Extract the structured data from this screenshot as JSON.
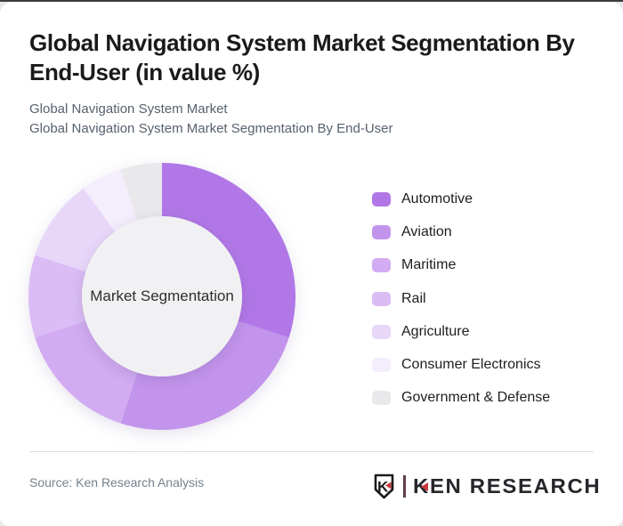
{
  "page": {
    "background_color": "#e8e8e8",
    "card_color": "#ffffff",
    "top_strip_color": "#3c3c3c"
  },
  "header": {
    "title": "Global Navigation System Market Segmentation By End-User (in value %)",
    "title_lines": [
      "Global Navigation System Market Segmentation By",
      "End-User (in value %)"
    ],
    "subtitle_lines": [
      "Global Navigation System Market",
      "Global Navigation System Market Segmentation By End-User"
    ]
  },
  "chart_data": {
    "type": "pie",
    "variant": "donut",
    "title": "Global Navigation System Market Segmentation By End-User (in value %)",
    "center_label": "Market Segmentation",
    "categories": [
      "Automotive",
      "Aviation",
      "Maritime",
      "Rail",
      "Agriculture",
      "Consumer Electronics",
      "Government & Defense"
    ],
    "values": [
      30,
      25,
      15,
      10,
      10,
      5,
      5
    ],
    "unit": "%",
    "colors": [
      "#b177e7",
      "#c394ec",
      "#d2abf2",
      "#dbbcf5",
      "#e8d7f9",
      "#f4edfc",
      "#e9e9eb"
    ],
    "start_angle_deg": 0,
    "direction": "clockwise",
    "legend_position": "right",
    "inner_radius_ratio": 0.6,
    "inner_circle_color": "#f1f1f3",
    "data_labels_shown": false
  },
  "footer": {
    "source": "Source: Ken Research Analysis",
    "logo": {
      "shield_letter": "K",
      "wordmark": "KEN RESEARCH",
      "accent_color": "#c9393c",
      "text_color": "#26262b",
      "outline_color": "#1b1b1b"
    }
  }
}
